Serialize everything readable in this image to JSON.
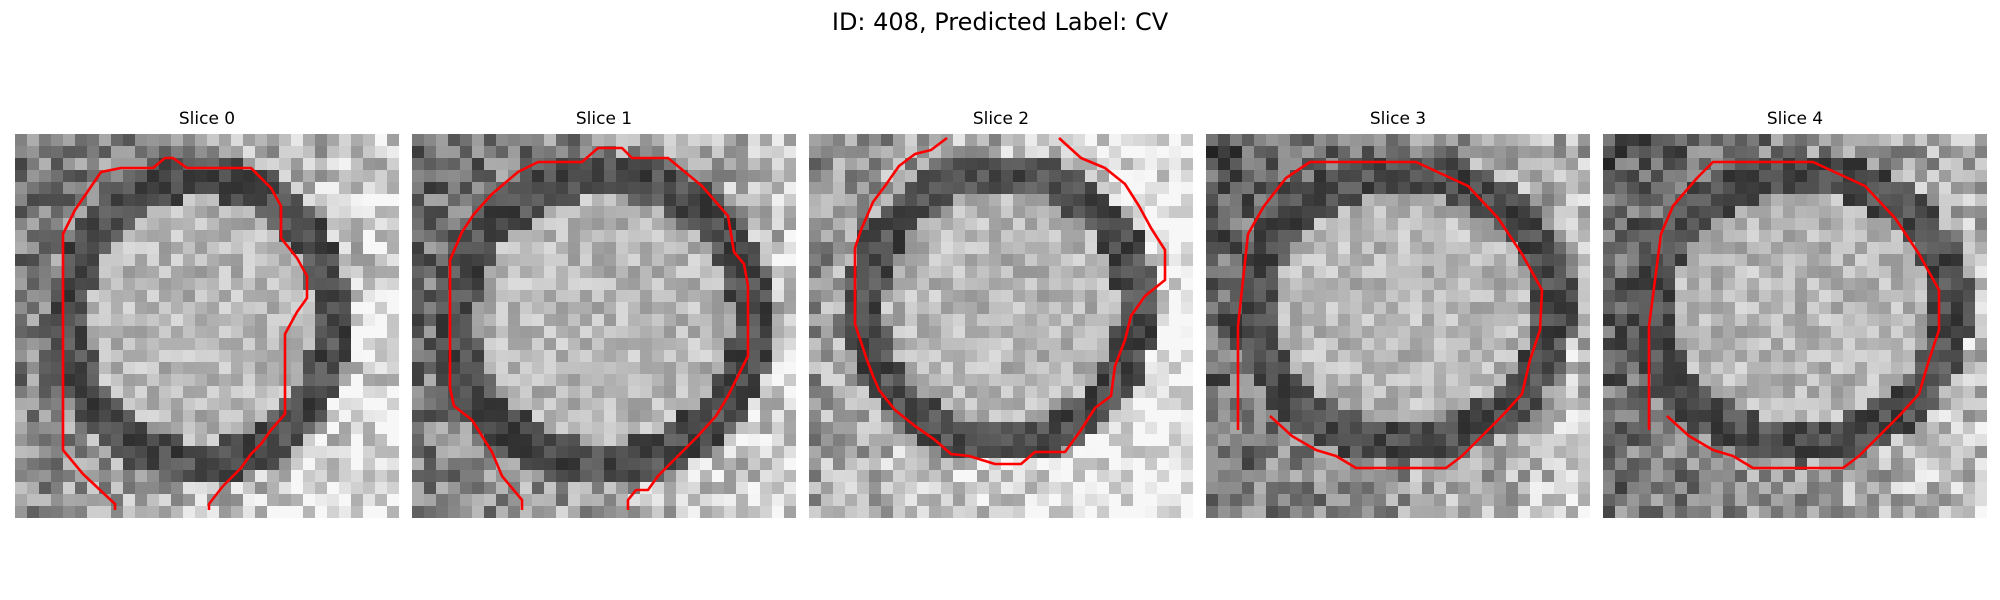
{
  "figure": {
    "title": "ID: 408, Predicted Label: CV"
  },
  "panels": [
    {
      "title": "Slice 0"
    },
    {
      "title": "Slice 1"
    },
    {
      "title": "Slice 2"
    },
    {
      "title": "Slice 3"
    },
    {
      "title": "Slice 4"
    }
  ],
  "colors": {
    "contour": "#ff0000",
    "background": "#ffffff"
  }
}
